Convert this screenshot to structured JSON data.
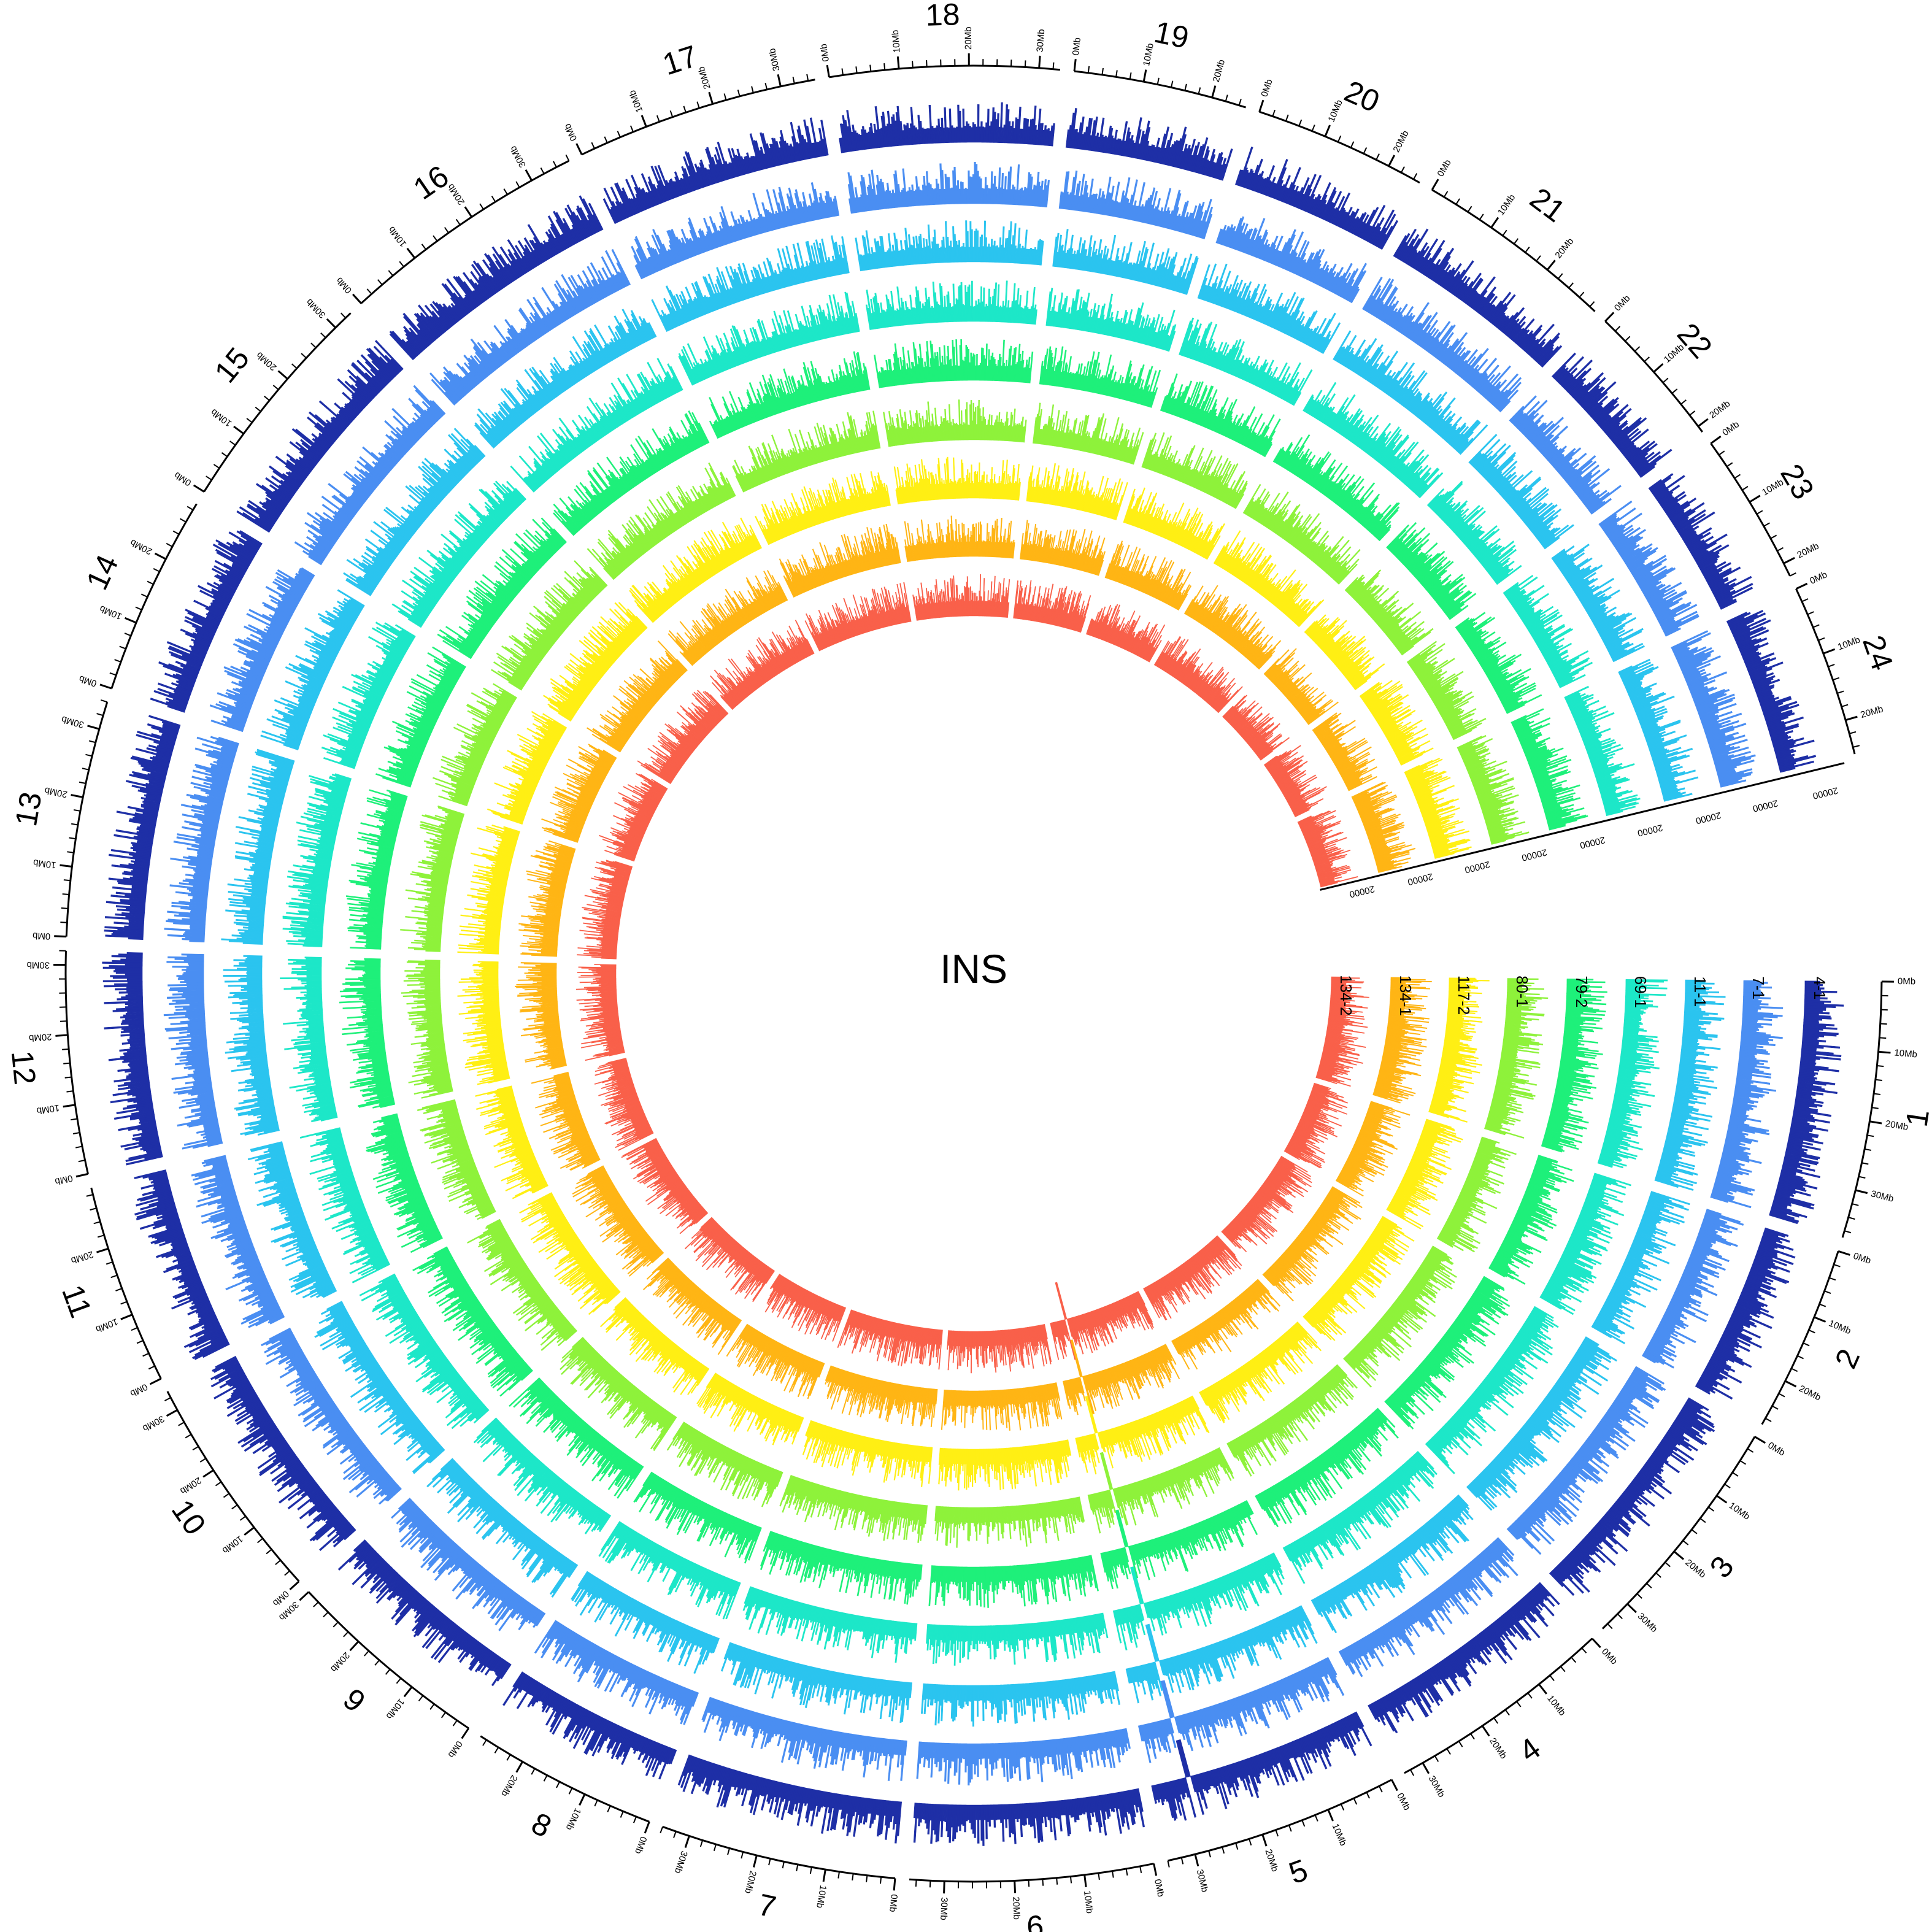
{
  "chart_data": {
    "type": "circular-histogram",
    "title": "INS",
    "chromosomes": [
      {
        "name": "1",
        "length_mb": 37
      },
      {
        "name": "2",
        "length_mb": 27
      },
      {
        "name": "3",
        "length_mb": 35
      },
      {
        "name": "4",
        "length_mb": 33
      },
      {
        "name": "5",
        "length_mb": 34
      },
      {
        "name": "6",
        "length_mb": 35
      },
      {
        "name": "7",
        "length_mb": 34
      },
      {
        "name": "8",
        "length_mb": 27
      },
      {
        "name": "9",
        "length_mb": 30
      },
      {
        "name": "10",
        "length_mb": 33
      },
      {
        "name": "11",
        "length_mb": 29
      },
      {
        "name": "12",
        "length_mb": 32
      },
      {
        "name": "13",
        "length_mb": 34
      },
      {
        "name": "14",
        "length_mb": 29
      },
      {
        "name": "15",
        "length_mb": 33
      },
      {
        "name": "16",
        "length_mb": 36
      },
      {
        "name": "17",
        "length_mb": 35
      },
      {
        "name": "18",
        "length_mb": 33
      },
      {
        "name": "19",
        "length_mb": 25
      },
      {
        "name": "20",
        "length_mb": 25
      },
      {
        "name": "21",
        "length_mb": 29
      },
      {
        "name": "22",
        "length_mb": 21
      },
      {
        "name": "23",
        "length_mb": 22
      },
      {
        "name": "24",
        "length_mb": 25
      }
    ],
    "tick_unit_label": "Mb",
    "major_tick_step_mb": 10,
    "minor_tick_step_mb": 2,
    "y_axis_max_label": "20000",
    "tracks": [
      {
        "name": "4-1",
        "color": "#1e2fa6"
      },
      {
        "name": "7-1",
        "color": "#4a8ef2"
      },
      {
        "name": "11-1",
        "color": "#2bc4ef"
      },
      {
        "name": "69-1",
        "color": "#1de7c8"
      },
      {
        "name": "79-2",
        "color": "#1ef07a"
      },
      {
        "name": "80-1",
        "color": "#8ef23b"
      },
      {
        "name": "117-2",
        "color": "#ffef14"
      },
      {
        "name": "134-1",
        "color": "#ffb515"
      },
      {
        "name": "134-2",
        "color": "#f9604a"
      }
    ],
    "notable_peaks": [
      {
        "chromosome": "5",
        "position_mb": 28,
        "tracks": "all"
      }
    ]
  }
}
